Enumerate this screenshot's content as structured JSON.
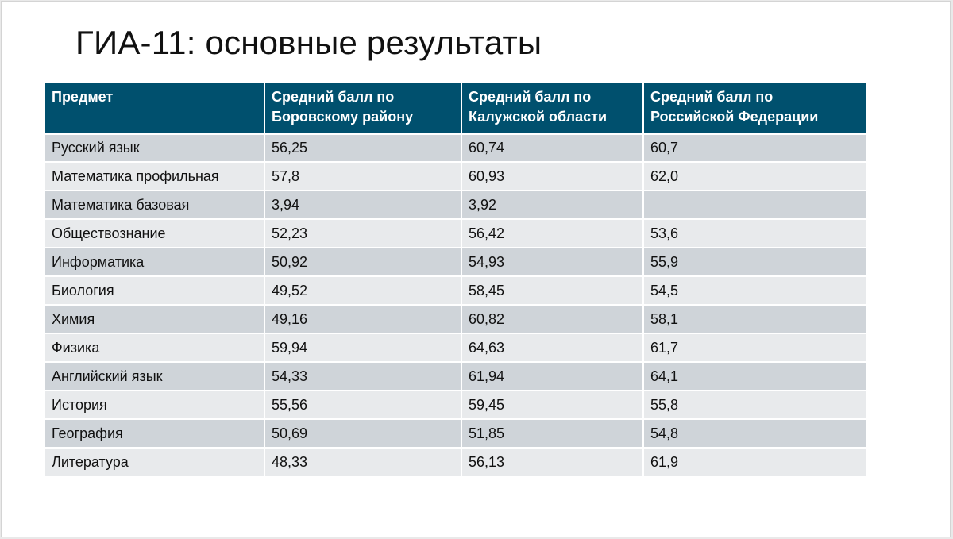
{
  "slide": {
    "title": "ГИА-11: основные результаты"
  },
  "table": {
    "headers": [
      "Предмет",
      "Средний балл по Боровскому району",
      "Средний балл по Калужской области",
      "Средний балл по Российской Федерации"
    ],
    "rows": [
      [
        "Русский язык",
        "56,25",
        "60,74",
        "60,7"
      ],
      [
        "Математика профильная",
        "57,8",
        "60,93",
        "62,0"
      ],
      [
        "Математика базовая",
        "3,94",
        "3,92",
        ""
      ],
      [
        "Обществознание",
        "52,23",
        "56,42",
        "53,6"
      ],
      [
        "Информатика",
        "50,92",
        "54,93",
        "55,9"
      ],
      [
        "Биология",
        "49,52",
        "58,45",
        "54,5"
      ],
      [
        "Химия",
        "49,16",
        "60,82",
        "58,1"
      ],
      [
        "Физика",
        "59,94",
        "64,63",
        "61,7"
      ],
      [
        "Английский язык",
        "54,33",
        "61,94",
        "64,1"
      ],
      [
        "История",
        "55,56",
        "59,45",
        "55,8"
      ],
      [
        "География",
        "50,69",
        "51,85",
        "54,8"
      ],
      [
        "Литература",
        "48,33",
        "56,13",
        "61,9"
      ]
    ]
  }
}
